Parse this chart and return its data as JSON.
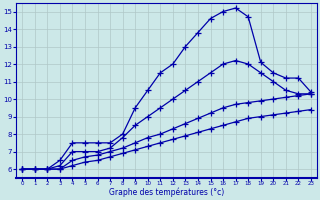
{
  "xlabel": "Graphe des températures (°c)",
  "xlim": [
    -0.5,
    23.5
  ],
  "ylim": [
    5.5,
    15.5
  ],
  "xticks": [
    0,
    1,
    2,
    3,
    4,
    5,
    6,
    7,
    8,
    9,
    10,
    11,
    12,
    13,
    14,
    15,
    16,
    17,
    18,
    19,
    20,
    21,
    22,
    23
  ],
  "yticks": [
    6,
    7,
    8,
    9,
    10,
    11,
    12,
    13,
    14,
    15
  ],
  "bg_color": "#cce8e8",
  "grid_color": "#b0c8c8",
  "line_color": "#0000aa",
  "series1_x": [
    0,
    1,
    2,
    3,
    4,
    5,
    6,
    7,
    8,
    9,
    10,
    11,
    12,
    13,
    14,
    15,
    16,
    17,
    18,
    19,
    20,
    21,
    22,
    23
  ],
  "series1_y": [
    6.0,
    6.0,
    6.0,
    6.5,
    7.5,
    7.5,
    7.5,
    7.5,
    8.0,
    9.5,
    10.5,
    11.5,
    12.0,
    13.0,
    13.8,
    14.6,
    15.0,
    15.2,
    14.7,
    12.1,
    11.5,
    11.2,
    11.2,
    10.4
  ],
  "series2_x": [
    0,
    1,
    2,
    3,
    4,
    5,
    6,
    7,
    8,
    9,
    10,
    11,
    12,
    13,
    14,
    15,
    16,
    17,
    18,
    19,
    20,
    21,
    22,
    23
  ],
  "series2_y": [
    6.0,
    6.0,
    6.0,
    6.2,
    7.0,
    7.0,
    7.0,
    7.2,
    7.8,
    8.5,
    9.0,
    9.5,
    10.0,
    10.5,
    11.0,
    11.5,
    12.0,
    12.2,
    12.0,
    11.5,
    11.0,
    10.5,
    10.3,
    10.3
  ],
  "series3_x": [
    0,
    1,
    2,
    3,
    4,
    5,
    6,
    7,
    8,
    9,
    10,
    11,
    12,
    13,
    14,
    15,
    16,
    17,
    18,
    19,
    20,
    21,
    22,
    23
  ],
  "series3_y": [
    6.0,
    6.0,
    6.0,
    6.0,
    6.5,
    6.7,
    6.8,
    7.0,
    7.2,
    7.5,
    7.8,
    8.0,
    8.3,
    8.6,
    8.9,
    9.2,
    9.5,
    9.7,
    9.8,
    9.9,
    10.0,
    10.1,
    10.2,
    10.3
  ],
  "series4_x": [
    0,
    1,
    2,
    3,
    4,
    5,
    6,
    7,
    8,
    9,
    10,
    11,
    12,
    13,
    14,
    15,
    16,
    17,
    18,
    19,
    20,
    21,
    22,
    23
  ],
  "series4_y": [
    6.0,
    6.0,
    6.0,
    6.0,
    6.2,
    6.4,
    6.5,
    6.7,
    6.9,
    7.1,
    7.3,
    7.5,
    7.7,
    7.9,
    8.1,
    8.3,
    8.5,
    8.7,
    8.9,
    9.0,
    9.1,
    9.2,
    9.3,
    9.4
  ]
}
